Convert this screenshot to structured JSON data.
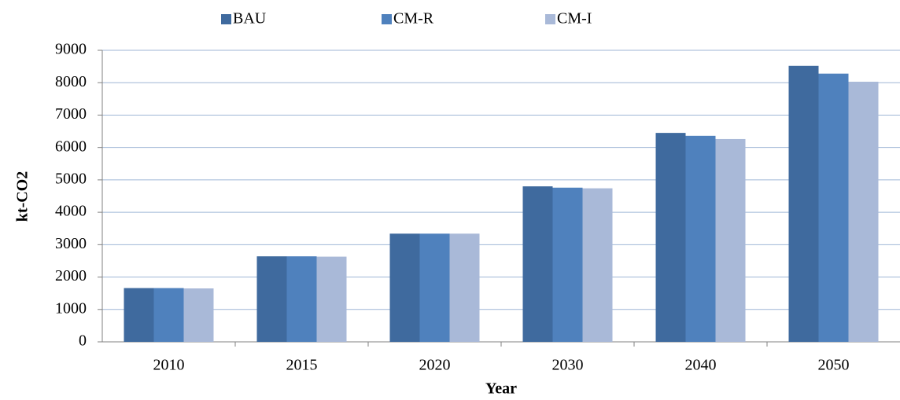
{
  "chart_data": {
    "type": "bar",
    "categories": [
      "2010",
      "2015",
      "2020",
      "2030",
      "2040",
      "2050"
    ],
    "series": [
      {
        "name": "BAU",
        "color": "#3f6a9e",
        "values": [
          1660,
          2640,
          3340,
          4800,
          6450,
          8520
        ]
      },
      {
        "name": "CM-R",
        "color": "#4f81bd",
        "values": [
          1660,
          2640,
          3340,
          4760,
          6360,
          8280
        ]
      },
      {
        "name": "CM-I",
        "color": "#a9b9d8",
        "values": [
          1650,
          2630,
          3340,
          4740,
          6260,
          8030
        ]
      }
    ],
    "x_label": "Year",
    "y_label": "kt-CO2",
    "ylim": [
      0,
      9000
    ],
    "yticks": [
      0,
      1000,
      2000,
      3000,
      4000,
      5000,
      6000,
      7000,
      8000,
      9000
    ],
    "grid": true,
    "legend": "top"
  }
}
